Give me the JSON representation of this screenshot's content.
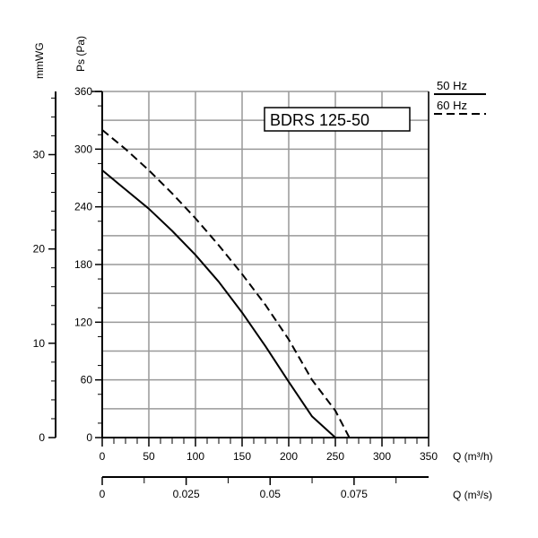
{
  "chart_data": {
    "type": "line",
    "title": "BDRS 125-50",
    "xlabel": "Q (m³/h)",
    "xlabel2": "Q (m³/s)",
    "ylabel": "Ps (Pa)",
    "ylabel2": "mmWG",
    "xlim": [
      0,
      350
    ],
    "ylim": [
      0,
      360
    ],
    "xlim2": [
      0,
      0.0972
    ],
    "y2lim": [
      0,
      36.7
    ],
    "grid": true,
    "legend_position": "top-right",
    "x_ticks": [
      0,
      50,
      100,
      150,
      200,
      250,
      300,
      350
    ],
    "y_ticks": [
      0,
      60,
      120,
      180,
      240,
      300,
      360
    ],
    "x2_ticks": [
      0,
      0.025,
      0.05,
      0.075
    ],
    "x2_tick_labels": [
      "0",
      "0.025",
      "0.05",
      "0.075"
    ],
    "y2_ticks": [
      0,
      10,
      20,
      30
    ],
    "series": [
      {
        "name": "50 Hz",
        "style": "solid",
        "x": [
          0,
          25,
          50,
          75,
          100,
          125,
          150,
          175,
          200,
          225,
          250
        ],
        "y": [
          278,
          258,
          238,
          215,
          190,
          162,
          130,
          95,
          58,
          22,
          0
        ]
      },
      {
        "name": "60 Hz",
        "style": "dashed",
        "x": [
          0,
          25,
          50,
          75,
          100,
          125,
          150,
          175,
          200,
          225,
          250,
          265
        ],
        "y": [
          320,
          300,
          278,
          254,
          228,
          200,
          170,
          138,
          102,
          60,
          28,
          0
        ]
      }
    ]
  }
}
